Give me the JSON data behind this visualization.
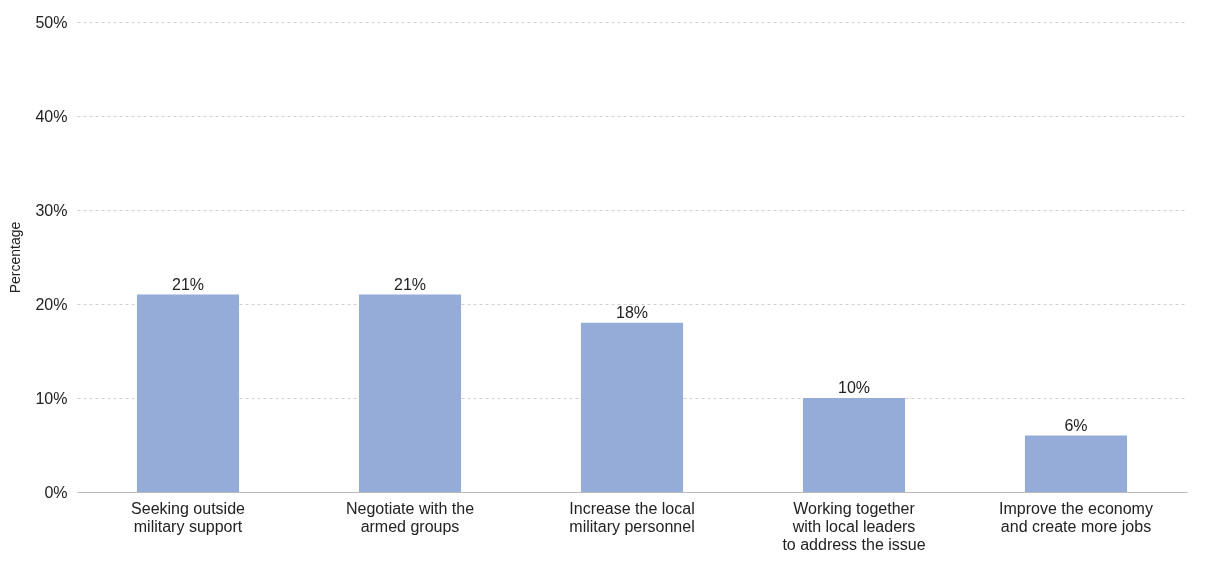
{
  "chart_data": {
    "type": "bar",
    "ylabel": "Percentage",
    "categories": [
      "Seeking outside military support",
      "Negotiate with the armed groups",
      "Increase the local military personnel",
      "Working together with local leaders to address the issue",
      "Improve the economy and create more jobs"
    ],
    "values": [
      21,
      21,
      18,
      10,
      6
    ],
    "value_labels": [
      "21%",
      "21%",
      "18%",
      "10%",
      "6%"
    ],
    "color": "#95acd8",
    "ylim": [
      0,
      50
    ],
    "yticks": [
      {
        "value": 0,
        "label": "0%"
      },
      {
        "value": 10,
        "label": "10%"
      },
      {
        "value": 20,
        "label": "20%"
      },
      {
        "value": 30,
        "label": "30%"
      },
      {
        "value": 40,
        "label": "40%"
      },
      {
        "value": 50,
        "label": "50%"
      }
    ],
    "grid": "y"
  }
}
